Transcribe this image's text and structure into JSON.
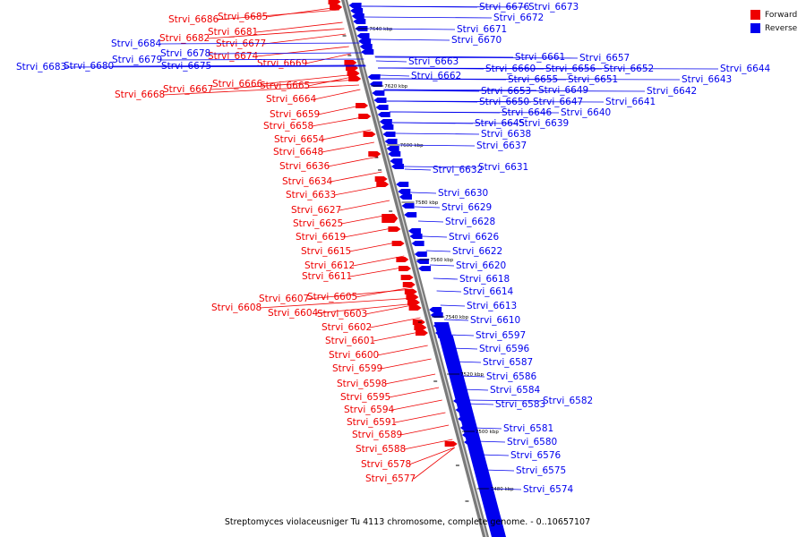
{
  "caption": "Streptomyces violaceusniger Tu 4113 chromosome, complete genome. - 0..10657107",
  "legend": [
    {
      "label": "Forward",
      "color": "#ee0000"
    },
    {
      "label": "Reverse",
      "color": "#0000ee"
    }
  ],
  "colors": {
    "forward": "#ee0000",
    "reverse": "#0000ee",
    "axis": "#8c8c8c"
  },
  "scale_labels": [
    "7640 kbp",
    "7620 kbp",
    "7600 kbp",
    "7580 kbp",
    "7560 kbp",
    "7540 kbp",
    "7520 kbp",
    "7500 kbp",
    "7480 kbp"
  ],
  "forward_genes": [
    "Strvi_6686",
    "Strvi_6685",
    "Strvi_6682",
    "Strvi_6681",
    "Strvi_6677",
    "Strvi_6674",
    "Strvi_6669",
    "Strvi_6667",
    "Strvi_6668",
    "Strvi_6666",
    "Strvi_6665",
    "Strvi_6664",
    "Strvi_6659",
    "Strvi_6658",
    "Strvi_6654",
    "Strvi_6648",
    "Strvi_6636",
    "Strvi_6634",
    "Strvi_6633",
    "Strvi_6627",
    "Strvi_6625",
    "Strvi_6619",
    "Strvi_6615",
    "Strvi_6612",
    "Strvi_6611",
    "Strvi_6607",
    "Strvi_6605",
    "Strvi_6608",
    "Strvi_6604",
    "Strvi_6603",
    "Strvi_6602",
    "Strvi_6601",
    "Strvi_6600",
    "Strvi_6599",
    "Strvi_6598",
    "Strvi_6595",
    "Strvi_6594",
    "Strvi_6591",
    "Strvi_6589",
    "Strvi_6588",
    "Strvi_6578",
    "Strvi_6577"
  ],
  "reverse_genes": [
    "Strvi_6676",
    "Strvi_6673",
    "Strvi_6672",
    "Strvi_6671",
    "Strvi_6670",
    "Strvi_6684",
    "Strvi_6679",
    "Strvi_6678",
    "Strvi_6683",
    "Strvi_6680",
    "Strvi_6675",
    "Strvi_6663",
    "Strvi_6662",
    "Strvi_6661",
    "Strvi_6657",
    "Strvi_6660",
    "Strvi_6656",
    "Strvi_6652",
    "Strvi_6644",
    "Strvi_6655",
    "Strvi_6651",
    "Strvi_6643",
    "Strvi_6653",
    "Strvi_6649",
    "Strvi_6642",
    "Strvi_6650",
    "Strvi_6647",
    "Strvi_6641",
    "Strvi_6646",
    "Strvi_6640",
    "Strvi_6645",
    "Strvi_6639",
    "Strvi_6638",
    "Strvi_6637",
    "Strvi_6632",
    "Strvi_6631",
    "Strvi_6630",
    "Strvi_6629",
    "Strvi_6628",
    "Strvi_6626",
    "Strvi_6622",
    "Strvi_6620",
    "Strvi_6618",
    "Strvi_6614",
    "Strvi_6613",
    "Strvi_6610",
    "Strvi_6597",
    "Strvi_6596",
    "Strvi_6587",
    "Strvi_6586",
    "Strvi_6584",
    "Strvi_6583",
    "Strvi_6582",
    "Strvi_6581",
    "Strvi_6580",
    "Strvi_6576",
    "Strvi_6575",
    "Strvi_6574"
  ]
}
